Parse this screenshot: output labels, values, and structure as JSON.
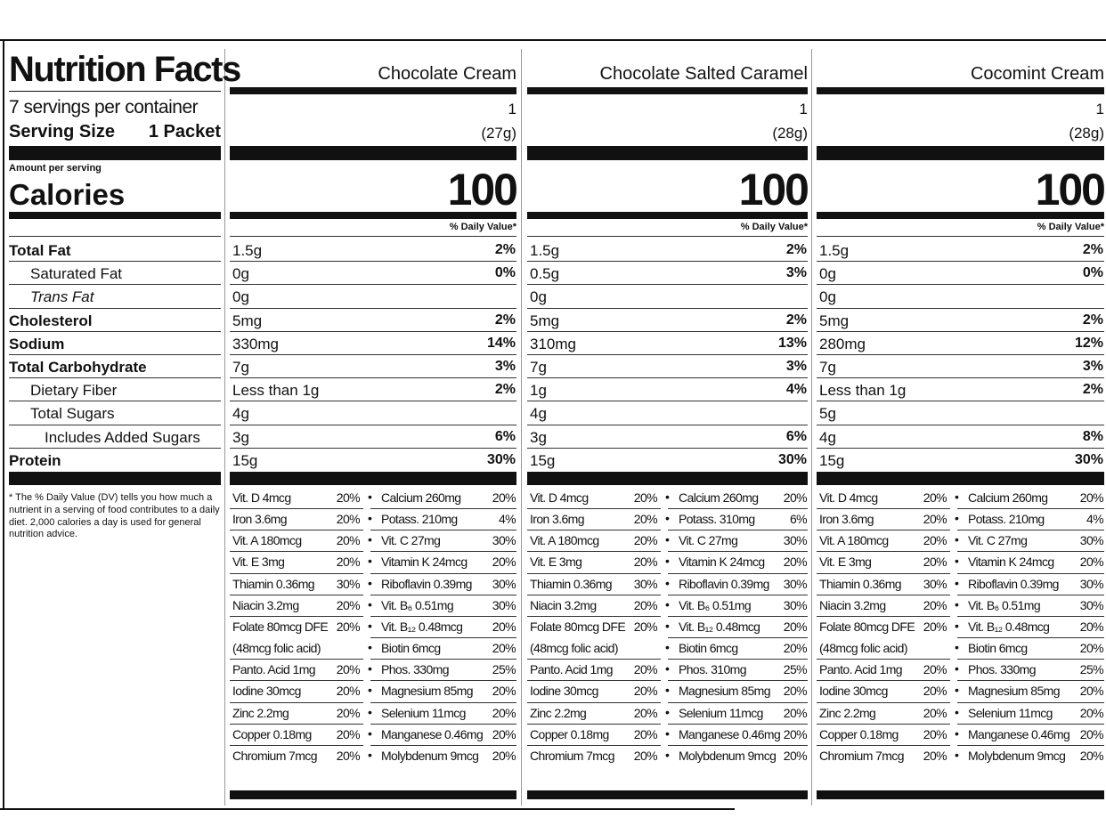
{
  "label": {
    "title": "Nutrition Facts",
    "servings": "7 servings per container",
    "serving_size_label": "Serving Size",
    "serving_size_value": "1 Packet",
    "amount_per_serving": "Amount per serving",
    "calories_label": "Calories",
    "nutrients": [
      "Total Fat",
      "Saturated Fat",
      "Trans Fat",
      "Cholesterol",
      "Sodium",
      "Total Carbohydrate",
      "Dietary Fiber",
      "Total Sugars",
      "Includes Added Sugars",
      "Protein"
    ],
    "footnote": "* The % Daily Value (DV) tells you how much a nutrient in a serving of food contributes to a daily diet. 2,000 calories a day is used for general nutrition advice."
  },
  "products": [
    {
      "name": "Chocolate Cream",
      "servings": "1",
      "serving_size": "(27g)",
      "calories": "100",
      "dv_header": "% Daily Value*",
      "nutrients": [
        {
          "amount": "1.5g",
          "dv": "2%"
        },
        {
          "amount": "0g",
          "dv": "0%"
        },
        {
          "amount": "0g",
          "dv": null
        },
        {
          "amount": "5mg",
          "dv": "2%"
        },
        {
          "amount": "330mg",
          "dv": "14%"
        },
        {
          "amount": "7g",
          "dv": "3%"
        },
        {
          "amount": "Less than 1g",
          "dv": "2%"
        },
        {
          "amount": "4g",
          "dv": null
        },
        {
          "amount": "3g",
          "dv": "6%"
        },
        {
          "amount": "15g",
          "dv": "30%"
        }
      ],
      "vitamins": [
        [
          "Vit. D 4mcg",
          "20%",
          "Calcium 260mg",
          "20%"
        ],
        [
          "Iron 3.6mg",
          "20%",
          "Potass. 210mg",
          "4%"
        ],
        [
          "Vit. A 180mcg",
          "20%",
          "Vit. C 27mg",
          "30%"
        ],
        [
          "Vit. E 3mg",
          "20%",
          "Vitamin K 24mcg",
          "20%"
        ],
        [
          "Thiamin 0.36mg",
          "30%",
          "Riboflavin 0.39mg",
          "30%"
        ],
        [
          "Niacin 3.2mg",
          "20%",
          "Vit. B₆ 0.51mg",
          "30%"
        ],
        [
          "Folate 80mcg DFE",
          "20%",
          "Vit. B₁₂ 0.48mcg",
          "20%"
        ],
        [
          "(48mcg folic acid)",
          null,
          "Biotin 6mcg",
          "20%"
        ],
        [
          "Panto. Acid 1mg",
          "20%",
          "Phos. 330mg",
          "25%"
        ],
        [
          "Iodine 30mcg",
          "20%",
          "Magnesium 85mg",
          "20%"
        ],
        [
          "Zinc 2.2mg",
          "20%",
          "Selenium 11mcg",
          "20%"
        ],
        [
          "Copper 0.18mg",
          "20%",
          "Manganese 0.46mg",
          "20%"
        ],
        [
          "Chromium 7mcg",
          "20%",
          "Molybdenum 9mcg",
          "20%"
        ]
      ]
    },
    {
      "name": "Chocolate Salted Caramel",
      "servings": "1",
      "serving_size": "(28g)",
      "calories": "100",
      "dv_header": "% Daily Value*",
      "nutrients": [
        {
          "amount": "1.5g",
          "dv": "2%"
        },
        {
          "amount": "0.5g",
          "dv": "3%"
        },
        {
          "amount": "0g",
          "dv": null
        },
        {
          "amount": "5mg",
          "dv": "2%"
        },
        {
          "amount": "310mg",
          "dv": "13%"
        },
        {
          "amount": "7g",
          "dv": "3%"
        },
        {
          "amount": "1g",
          "dv": "4%"
        },
        {
          "amount": "4g",
          "dv": null
        },
        {
          "amount": "3g",
          "dv": "6%"
        },
        {
          "amount": "15g",
          "dv": "30%"
        }
      ],
      "vitamins": [
        [
          "Vit. D 4mcg",
          "20%",
          "Calcium 260mg",
          "20%"
        ],
        [
          "Iron 3.6mg",
          "20%",
          "Potass. 310mg",
          "6%"
        ],
        [
          "Vit. A 180mcg",
          "20%",
          "Vit. C 27mg",
          "30%"
        ],
        [
          "Vit. E 3mg",
          "20%",
          "Vitamin K 24mcg",
          "20%"
        ],
        [
          "Thiamin 0.36mg",
          "30%",
          "Riboflavin 0.39mg",
          "30%"
        ],
        [
          "Niacin 3.2mg",
          "20%",
          "Vit. B₆ 0.51mg",
          "30%"
        ],
        [
          "Folate 80mcg DFE",
          "20%",
          "Vit. B₁₂ 0.48mcg",
          "20%"
        ],
        [
          "(48mcg folic acid)",
          null,
          "Biotin 6mcg",
          "20%"
        ],
        [
          "Panto. Acid 1mg",
          "20%",
          "Phos. 310mg",
          "25%"
        ],
        [
          "Iodine 30mcg",
          "20%",
          "Magnesium 85mg",
          "20%"
        ],
        [
          "Zinc 2.2mg",
          "20%",
          "Selenium 11mcg",
          "20%"
        ],
        [
          "Copper 0.18mg",
          "20%",
          "Manganese 0.46mg",
          "20%"
        ],
        [
          "Chromium 7mcg",
          "20%",
          "Molybdenum 9mcg",
          "20%"
        ]
      ]
    },
    {
      "name": "Cocomint Cream",
      "servings": "1",
      "serving_size": "(28g)",
      "calories": "100",
      "dv_header": "% Daily Value*",
      "nutrients": [
        {
          "amount": "1.5g",
          "dv": "2%"
        },
        {
          "amount": "0g",
          "dv": "0%"
        },
        {
          "amount": "0g",
          "dv": null
        },
        {
          "amount": "5mg",
          "dv": "2%"
        },
        {
          "amount": "280mg",
          "dv": "12%"
        },
        {
          "amount": "7g",
          "dv": "3%"
        },
        {
          "amount": "Less than 1g",
          "dv": "2%"
        },
        {
          "amount": "5g",
          "dv": null
        },
        {
          "amount": "4g",
          "dv": "8%"
        },
        {
          "amount": "15g",
          "dv": "30%"
        }
      ],
      "vitamins": [
        [
          "Vit. D 4mcg",
          "20%",
          "Calcium 260mg",
          "20%"
        ],
        [
          "Iron 3.6mg",
          "20%",
          "Potass. 210mg",
          "4%"
        ],
        [
          "Vit. A 180mcg",
          "20%",
          "Vit. C 27mg",
          "30%"
        ],
        [
          "Vit. E 3mg",
          "20%",
          "Vitamin K 24mcg",
          "20%"
        ],
        [
          "Thiamin 0.36mg",
          "30%",
          "Riboflavin 0.39mg",
          "30%"
        ],
        [
          "Niacin 3.2mg",
          "20%",
          "Vit. B₆ 0.51mg",
          "30%"
        ],
        [
          "Folate 80mcg DFE",
          "20%",
          "Vit. B₁₂ 0.48mcg",
          "20%"
        ],
        [
          "(48mcg folic acid)",
          null,
          "Biotin 6mcg",
          "20%"
        ],
        [
          "Panto. Acid 1mg",
          "20%",
          "Phos. 330mg",
          "25%"
        ],
        [
          "Iodine 30mcg",
          "20%",
          "Magnesium 85mg",
          "20%"
        ],
        [
          "Zinc 2.2mg",
          "20%",
          "Selenium 11mcg",
          "20%"
        ],
        [
          "Copper 0.18mg",
          "20%",
          "Manganese 0.46mg",
          "20%"
        ],
        [
          "Chromium 7mcg",
          "20%",
          "Molybdenum 9mcg",
          "20%"
        ]
      ]
    }
  ]
}
